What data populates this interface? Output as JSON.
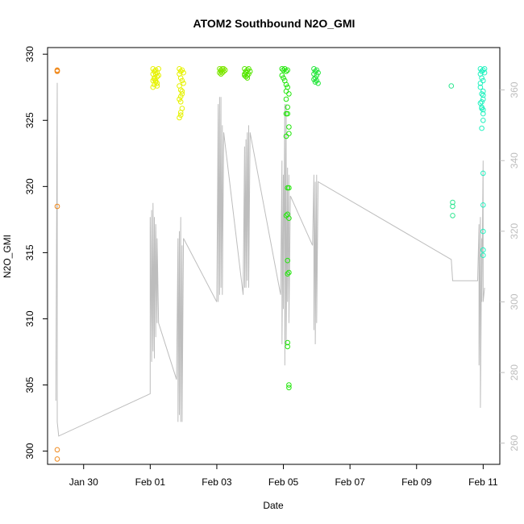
{
  "chart_data": {
    "type": "scatter",
    "title": "ATOM2 Southbound N2O_GMI",
    "xlabel": "Date",
    "ylabel": "N2O_GMI",
    "x_start": "2017-01-28T22:00",
    "xlim": [
      "2017-01-28T22:00",
      "2017-02-11T12:00"
    ],
    "ylim": [
      299,
      330.5
    ],
    "y2lim": [
      254,
      372
    ],
    "x_ticks": [
      {
        "date": "2017-01-30",
        "label": "Jan 30"
      },
      {
        "date": "2017-02-01",
        "label": "Feb 01"
      },
      {
        "date": "2017-02-03",
        "label": "Feb 03"
      },
      {
        "date": "2017-02-05",
        "label": "Feb 05"
      },
      {
        "date": "2017-02-07",
        "label": "Feb 07"
      },
      {
        "date": "2017-02-09",
        "label": "Feb 09"
      },
      {
        "date": "2017-02-11",
        "label": "Feb 11"
      }
    ],
    "y_ticks": [
      300,
      305,
      310,
      315,
      320,
      325,
      330
    ],
    "y2_ticks": [
      260,
      280,
      300,
      320,
      340,
      360
    ],
    "grid": false,
    "legend": "none",
    "flights": [
      {
        "color": "#f08a1e",
        "x": [
          "2017-01-29T05:00",
          "2017-01-29T05:00",
          "2017-01-29T05:00",
          "2017-01-29T05:00",
          "2017-01-29T05:00",
          "2017-01-29T05:00"
        ],
        "y": [
          328.8,
          328.7,
          328.75,
          318.5,
          300.1,
          299.4
        ]
      },
      {
        "color": "#e6f200",
        "x": [
          "2017-02-01T02:00",
          "2017-02-01T02:00",
          "2017-02-01T03:00",
          "2017-02-01T03:00",
          "2017-02-01T04:00",
          "2017-02-01T04:00",
          "2017-02-01T05:00",
          "2017-02-01T05:00",
          "2017-02-01T06:00",
          "2017-02-01T02:00",
          "2017-02-01T04:00",
          "2017-02-01T03:00",
          "2017-02-01T05:00",
          "2017-02-01T03:00",
          "2017-02-01T06:00",
          "2017-02-01T04:00",
          "2017-02-01T02:00",
          "2017-02-01T05:00"
        ],
        "y": [
          328.9,
          328.5,
          328.7,
          328.2,
          328.8,
          328.0,
          328.6,
          327.8,
          328.4,
          327.5,
          327.9,
          328.1,
          328.3,
          327.7,
          328.9,
          328.5,
          328.0,
          327.6
        ]
      },
      {
        "color": "#e6f200",
        "x": [
          "2017-02-01T21:00",
          "2017-02-01T21:00",
          "2017-02-01T22:00",
          "2017-02-01T22:00",
          "2017-02-01T23:00",
          "2017-02-01T23:00",
          "2017-02-02T00:00",
          "2017-02-01T21:00",
          "2017-02-01T22:00",
          "2017-02-01T23:00",
          "2017-02-01T22:00",
          "2017-02-01T22:00",
          "2017-02-01T23:00",
          "2017-02-01T21:00",
          "2017-02-01T23:00",
          "2017-02-02T00:00",
          "2017-02-01T22:00",
          "2017-02-01T21:00",
          "2017-02-01T22:00"
        ],
        "y": [
          328.9,
          328.5,
          328.7,
          328.2,
          328.8,
          328.0,
          328.6,
          327.6,
          327.3,
          327.0,
          326.8,
          326.4,
          325.9,
          326.6,
          327.2,
          327.8,
          325.6,
          325.2,
          325.4
        ]
      },
      {
        "color": "#7de600",
        "x": [
          "2017-02-03T02:00",
          "2017-02-03T02:00",
          "2017-02-03T03:00",
          "2017-02-03T03:00",
          "2017-02-03T04:00",
          "2017-02-03T05:00",
          "2017-02-03T06:00",
          "2017-02-03T04:00",
          "2017-02-03T05:00",
          "2017-02-03T03:00"
        ],
        "y": [
          328.9,
          328.6,
          328.8,
          328.5,
          328.9,
          328.7,
          328.8,
          328.6,
          328.9,
          328.7
        ]
      },
      {
        "color": "#55e600",
        "x": [
          "2017-02-03T20:00",
          "2017-02-03T20:00",
          "2017-02-03T21:00",
          "2017-02-03T21:00",
          "2017-02-03T22:00",
          "2017-02-03T22:00",
          "2017-02-03T23:00",
          "2017-02-03T23:00",
          "2017-02-04T00:00",
          "2017-02-03T21:00",
          "2017-02-03T22:00",
          "2017-02-03T20:00"
        ],
        "y": [
          328.9,
          328.5,
          328.7,
          328.3,
          328.8,
          328.4,
          328.9,
          328.5,
          328.7,
          328.6,
          328.2,
          328.4
        ]
      },
      {
        "color": "#22e60b",
        "x": [
          "2017-02-04T23:00",
          "2017-02-04T23:00",
          "2017-02-05T00:00",
          "2017-02-05T00:00",
          "2017-02-05T01:00",
          "2017-02-05T01:00",
          "2017-02-05T02:00",
          "2017-02-05T02:00",
          "2017-02-05T03:00",
          "2017-02-05T03:00",
          "2017-02-05T02:00",
          "2017-02-05T02:00",
          "2017-02-05T03:00",
          "2017-02-05T02:00",
          "2017-02-05T03:00",
          "2017-02-05T04:00",
          "2017-02-05T02:00",
          "2017-02-05T03:00",
          "2017-02-05T03:00",
          "2017-02-05T04:00",
          "2017-02-05T02:00",
          "2017-02-05T03:00",
          "2017-02-05T03:00",
          "2017-02-05T04:00",
          "2017-02-05T04:00",
          "2017-02-05T03:00",
          "2017-02-05T03:00",
          "2017-02-05T04:00",
          "2017-02-05T04:00",
          "2017-02-05T04:00",
          "2017-02-05T04:00"
        ],
        "y": [
          328.9,
          328.4,
          328.8,
          328.2,
          328.9,
          328.0,
          328.7,
          327.7,
          328.8,
          327.5,
          327.2,
          326.6,
          326.0,
          325.5,
          325.5,
          324.5,
          323.8,
          319.9,
          317.9,
          317.6,
          317.8,
          314.4,
          313.4,
          319.9,
          313.5,
          308.2,
          307.9,
          305.0,
          304.8,
          324.0,
          327.0
        ]
      },
      {
        "color": "#22e63a",
        "x": [
          "2017-02-05T22:00",
          "2017-02-05T22:00",
          "2017-02-05T23:00",
          "2017-02-05T23:00",
          "2017-02-06T00:00",
          "2017-02-06T00:00",
          "2017-02-06T01:00",
          "2017-02-05T23:00",
          "2017-02-06T00:00",
          "2017-02-05T22:00",
          "2017-02-06T01:00"
        ],
        "y": [
          328.9,
          328.5,
          328.7,
          328.2,
          328.8,
          328.0,
          328.6,
          327.9,
          328.4,
          328.1,
          327.8
        ]
      },
      {
        "color": "#2ee690",
        "x": [
          "2017-02-10T01:00",
          "2017-02-10T02:00",
          "2017-02-10T02:00",
          "2017-02-10T02:00"
        ],
        "y": [
          327.6,
          318.8,
          318.5,
          317.8
        ]
      },
      {
        "color": "#22f2c0",
        "x": [
          "2017-02-10T22:00",
          "2017-02-10T22:00",
          "2017-02-10T23:00",
          "2017-02-10T23:00",
          "2017-02-11T00:00",
          "2017-02-11T00:00",
          "2017-02-11T01:00",
          "2017-02-10T22:00",
          "2017-02-10T23:00",
          "2017-02-11T00:00",
          "2017-02-10T22:00",
          "2017-02-10T23:00",
          "2017-02-11T00:00",
          "2017-02-10T23:00",
          "2017-02-10T22:00",
          "2017-02-11T00:00",
          "2017-02-10T23:00",
          "2017-02-11T00:00",
          "2017-02-10T23:00",
          "2017-02-11T00:00",
          "2017-02-11T00:00",
          "2017-02-11T00:00",
          "2017-02-11T00:00",
          "2017-02-11T00:00",
          "2017-02-11T01:00",
          "2017-02-11T00:00",
          "2017-02-11T00:00"
        ],
        "y": [
          328.9,
          328.5,
          328.7,
          328.2,
          328.8,
          328.0,
          328.9,
          327.5,
          327.0,
          326.6,
          326.3,
          326.0,
          325.8,
          326.4,
          327.8,
          327.2,
          325.9,
          325.0,
          324.4,
          321.0,
          318.6,
          316.6,
          315.2,
          314.8,
          328.6,
          326.9,
          325.5
        ]
      }
    ],
    "altitude_line": {
      "x": [
        "2017-01-29T04:00",
        "2017-01-29T05:00",
        "2017-01-29T05:00",
        "2017-01-29T05:00",
        "2017-01-29T05:00",
        "2017-01-29T06:00",
        "2017-02-01T00:00",
        "2017-02-01T00:00",
        "2017-02-01T01:00",
        "2017-02-01T01:00",
        "2017-02-01T02:00",
        "2017-02-01T02:00",
        "2017-02-01T03:00",
        "2017-02-01T03:00",
        "2017-02-01T04:00",
        "2017-02-01T04:00",
        "2017-02-01T05:00",
        "2017-02-01T05:00",
        "2017-02-01T06:00",
        "2017-02-01T19:00",
        "2017-02-01T20:00",
        "2017-02-01T20:00",
        "2017-02-01T21:00",
        "2017-02-01T21:00",
        "2017-02-01T22:00",
        "2017-02-01T22:00",
        "2017-02-01T23:00",
        "2017-02-01T23:00",
        "2017-02-02T00:00",
        "2017-02-03T00:00",
        "2017-02-03T01:00",
        "2017-02-03T01:00",
        "2017-02-03T02:00",
        "2017-02-03T02:00",
        "2017-02-03T03:00",
        "2017-02-03T03:00",
        "2017-02-03T04:00",
        "2017-02-03T04:00",
        "2017-02-03T05:00",
        "2017-02-03T19:00",
        "2017-02-03T20:00",
        "2017-02-03T20:00",
        "2017-02-03T21:00",
        "2017-02-03T21:00",
        "2017-02-03T22:00",
        "2017-02-03T22:00",
        "2017-02-03T23:00",
        "2017-02-03T23:00",
        "2017-02-04T00:00",
        "2017-02-04T22:00",
        "2017-02-04T23:00",
        "2017-02-04T23:00",
        "2017-02-05T00:00",
        "2017-02-05T00:00",
        "2017-02-05T01:00",
        "2017-02-05T01:00",
        "2017-02-05T02:00",
        "2017-02-05T02:00",
        "2017-02-05T03:00",
        "2017-02-05T03:00",
        "2017-02-05T04:00",
        "2017-02-05T04:00",
        "2017-02-05T05:00",
        "2017-02-05T21:00",
        "2017-02-05T22:00",
        "2017-02-05T22:00",
        "2017-02-05T23:00",
        "2017-02-05T23:00",
        "2017-02-06T00:00",
        "2017-02-06T00:00",
        "2017-02-06T01:00",
        "2017-02-10T01:00",
        "2017-02-10T02:00",
        "2017-02-10T20:00",
        "2017-02-10T21:00",
        "2017-02-10T21:00",
        "2017-02-10T22:00",
        "2017-02-10T22:00",
        "2017-02-10T23:00",
        "2017-02-10T23:00",
        "2017-02-11T00:00",
        "2017-02-11T00:00",
        "2017-02-11T01:00"
      ],
      "y": [
        272,
        362,
        270,
        300,
        266,
        262,
        274,
        324,
        283,
        326,
        286,
        328,
        284,
        324,
        290,
        322,
        294,
        318,
        294,
        278,
        318,
        266,
        320,
        268,
        324,
        266,
        316,
        266,
        318,
        300,
        356,
        300,
        358,
        302,
        358,
        304,
        350,
        302,
        348,
        302,
        344,
        304,
        346,
        304,
        348,
        306,
        350,
        304,
        348,
        302,
        340,
        288,
        336,
        298,
        356,
        282,
        356,
        288,
        338,
        300,
        336,
        294,
        330,
        316,
        336,
        292,
        334,
        288,
        336,
        294,
        334,
        312,
        306,
        306,
        322,
        282,
        324,
        270,
        318,
        300,
        340,
        300,
        304
      ]
    }
  }
}
